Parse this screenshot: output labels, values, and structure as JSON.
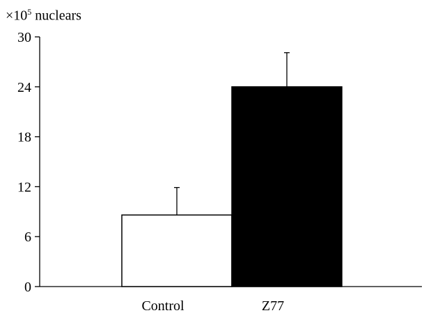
{
  "chart_data": {
    "type": "bar",
    "title": "",
    "xlabel": "",
    "ylabel": "",
    "unit_prefix": "×10",
    "unit_exponent": "5",
    "unit_suffix": " nuclears",
    "categories": [
      "Control",
      "Z77"
    ],
    "values": [
      8.6,
      24.0
    ],
    "error_upper": [
      11.9,
      28.1
    ],
    "bar_colors": [
      "#ffffff",
      "#000000"
    ],
    "bar_edge_color": "#000000",
    "ylim": [
      0,
      30
    ],
    "yticks": [
      0,
      6,
      12,
      18,
      24,
      30
    ],
    "grid": false,
    "legend": "none"
  }
}
